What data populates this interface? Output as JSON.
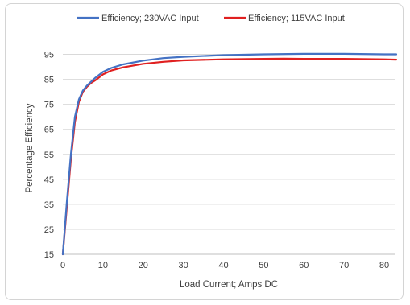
{
  "chart_data": {
    "type": "line",
    "title": "",
    "xlabel": "Load Current; Amps DC",
    "ylabel": "Percentage Efficiency",
    "xlim": [
      0,
      85
    ],
    "ylim": [
      15,
      100
    ],
    "xticks": [
      0,
      10,
      20,
      30,
      40,
      50,
      60,
      70,
      80
    ],
    "yticks": [
      15,
      25,
      35,
      45,
      55,
      65,
      75,
      85,
      95
    ],
    "grid": "horizontal",
    "legend_position": "top",
    "series": [
      {
        "name": "Efficiency; 230VAC Input",
        "color": "#4472c4",
        "x": [
          0,
          1,
          2,
          3,
          4,
          5,
          6,
          7,
          8,
          10,
          12,
          15,
          20,
          25,
          30,
          40,
          50,
          60,
          70,
          80,
          83
        ],
        "y": [
          15,
          36,
          55,
          70,
          77,
          80.5,
          82.5,
          84,
          85.5,
          88,
          89.5,
          91,
          92.5,
          93.5,
          94,
          94.7,
          95,
          95.2,
          95.2,
          95,
          95
        ]
      },
      {
        "name": "Efficiency; 115VAC Input",
        "color": "#e02020",
        "x": [
          0,
          1,
          2,
          3,
          4,
          5,
          6,
          7,
          8,
          10,
          12,
          15,
          20,
          25,
          30,
          40,
          50,
          55,
          60,
          70,
          80,
          83
        ],
        "y": [
          15,
          34,
          53,
          68,
          76,
          80,
          82,
          83.5,
          84.5,
          87,
          88.5,
          89.8,
          91.2,
          92,
          92.6,
          93,
          93.2,
          93.3,
          93.2,
          93.2,
          93,
          92.9
        ]
      }
    ]
  }
}
